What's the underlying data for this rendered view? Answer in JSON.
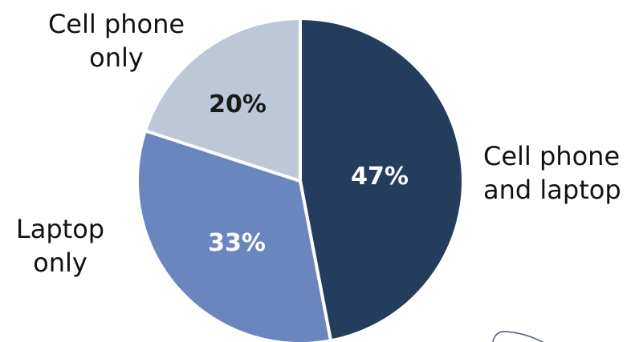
{
  "chart_data": {
    "type": "pie",
    "slices": [
      {
        "label_lines": [
          "Cell phone",
          "and laptop"
        ],
        "value": 47,
        "value_label": "47%",
        "color": "#243d5c",
        "text_color": "#ffffff"
      },
      {
        "label_lines": [
          "Laptop",
          "only"
        ],
        "value": 33,
        "value_label": "33%",
        "color": "#6b86bf",
        "text_color": "#ffffff"
      },
      {
        "label_lines": [
          "Cell phone",
          "only"
        ],
        "value": 20,
        "value_label": "20%",
        "color": "#bcc7d7",
        "text_color": "#1a1a1a"
      }
    ],
    "start_angle_deg": 0,
    "direction": "clockwise",
    "separator_color": "#ffffff",
    "legend": "none"
  }
}
